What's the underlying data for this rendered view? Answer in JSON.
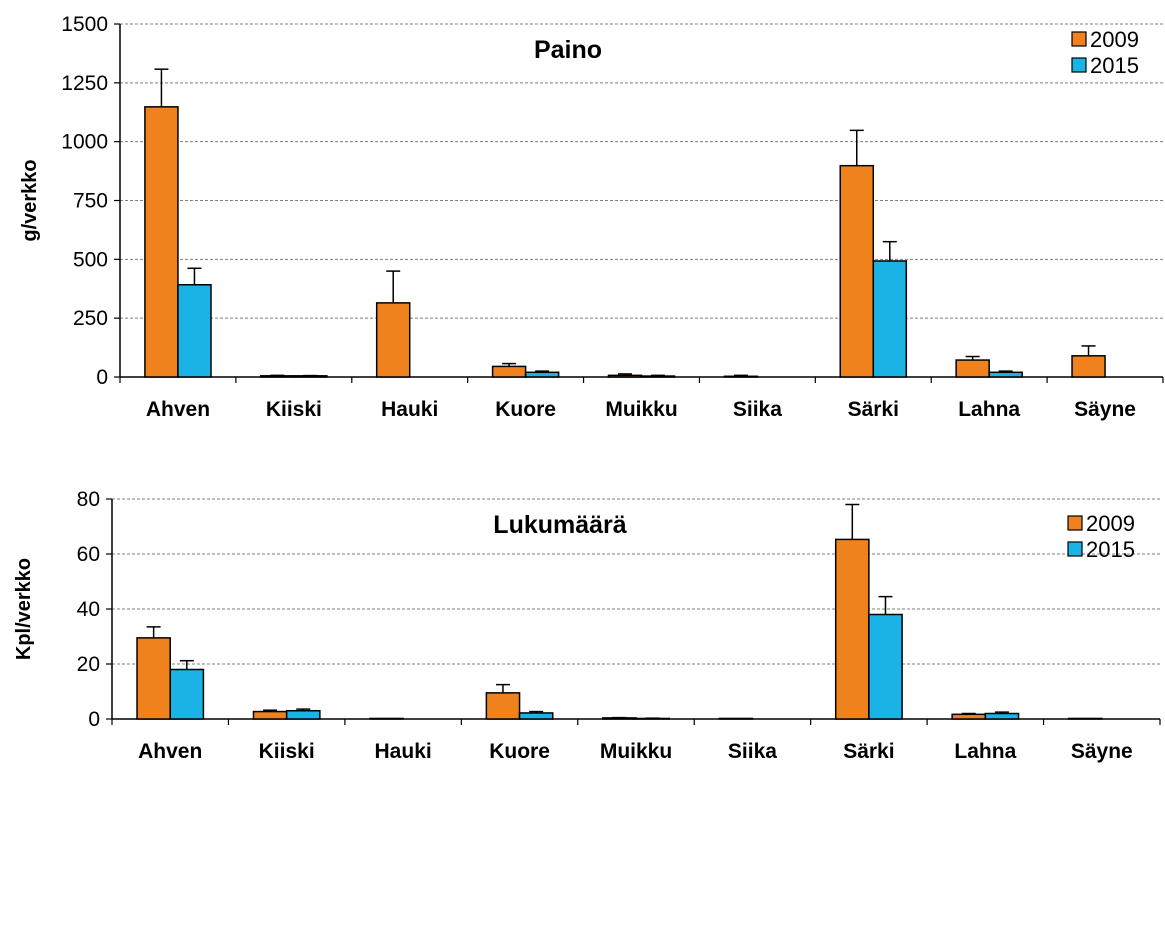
{
  "chart_data": [
    {
      "type": "bar",
      "title": "Paino",
      "ylabel": "g/verkko",
      "xlabel": "",
      "ylim": [
        0,
        1500
      ],
      "yticks": [
        0,
        250,
        500,
        750,
        1000,
        1250,
        1500
      ],
      "grid": true,
      "legend": "top-right",
      "categories": [
        "Ahven",
        "Kiiski",
        "Hauki",
        "Kuore",
        "Muikku",
        "Siika",
        "Särki",
        "Lahna",
        "Säyne"
      ],
      "series": [
        {
          "name": "2009",
          "color": "#f0821e",
          "values": [
            1148,
            5,
            315,
            45,
            7,
            3,
            898,
            72,
            90
          ],
          "errors": [
            160,
            2,
            135,
            12,
            6,
            4,
            150,
            15,
            42
          ]
        },
        {
          "name": "2015",
          "color": "#1bb3e6",
          "values": [
            392,
            5,
            0,
            20,
            4,
            0,
            493,
            20,
            0
          ],
          "errors": [
            70,
            1,
            0,
            5,
            3,
            0,
            82,
            5,
            0
          ]
        }
      ]
    },
    {
      "type": "bar",
      "title": "Lukumäärä",
      "ylabel": "Kpl/verkko",
      "xlabel": "",
      "ylim": [
        0,
        80
      ],
      "yticks": [
        0,
        20,
        40,
        60,
        80
      ],
      "grid": true,
      "legend": "top-right",
      "categories": [
        "Ahven",
        "Kiiski",
        "Hauki",
        "Kuore",
        "Muikku",
        "Siika",
        "Särki",
        "Lahna",
        "Säyne"
      ],
      "series": [
        {
          "name": "2009",
          "color": "#f0821e",
          "values": [
            29.5,
            2.7,
            0.2,
            9.5,
            0.4,
            0.2,
            65.3,
            1.7,
            0.2
          ],
          "errors": [
            4,
            0.5,
            0,
            3,
            0.1,
            0,
            12.7,
            0.3,
            0
          ]
        },
        {
          "name": "2015",
          "color": "#1bb3e6",
          "values": [
            18,
            3,
            0,
            2.2,
            0.2,
            0,
            38,
            2,
            0
          ],
          "errors": [
            3.2,
            0.6,
            0,
            0.5,
            0.1,
            0,
            6.5,
            0.5,
            0
          ]
        }
      ]
    }
  ]
}
